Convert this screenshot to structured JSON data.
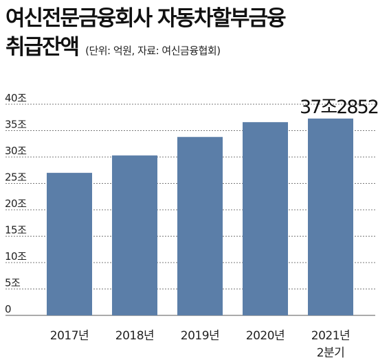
{
  "header": {
    "title_line1": "여신전문금융회사 자동차할부금융",
    "title_line2": "취급잔액",
    "subtitle": "(단위: 억원, 자료: 여신금융협회)"
  },
  "chart_data": {
    "type": "bar",
    "categories": [
      "2017년",
      "2018년",
      "2019년",
      "2020년",
      "2021년 2분기"
    ],
    "values": [
      270000,
      303000,
      338000,
      366000,
      372852
    ],
    "ylim": [
      0,
      400000
    ],
    "y_ticks": [
      0,
      50000,
      100000,
      150000,
      200000,
      250000,
      300000,
      350000,
      400000
    ],
    "y_tick_labels": [
      "0",
      "5조",
      "10조",
      "15조",
      "20조",
      "25조",
      "30조",
      "35조",
      "40조"
    ],
    "data_labels": [
      "",
      "",
      "",
      "",
      "37조2852"
    ],
    "grid": true,
    "bar_color": "#5b7ea8"
  }
}
